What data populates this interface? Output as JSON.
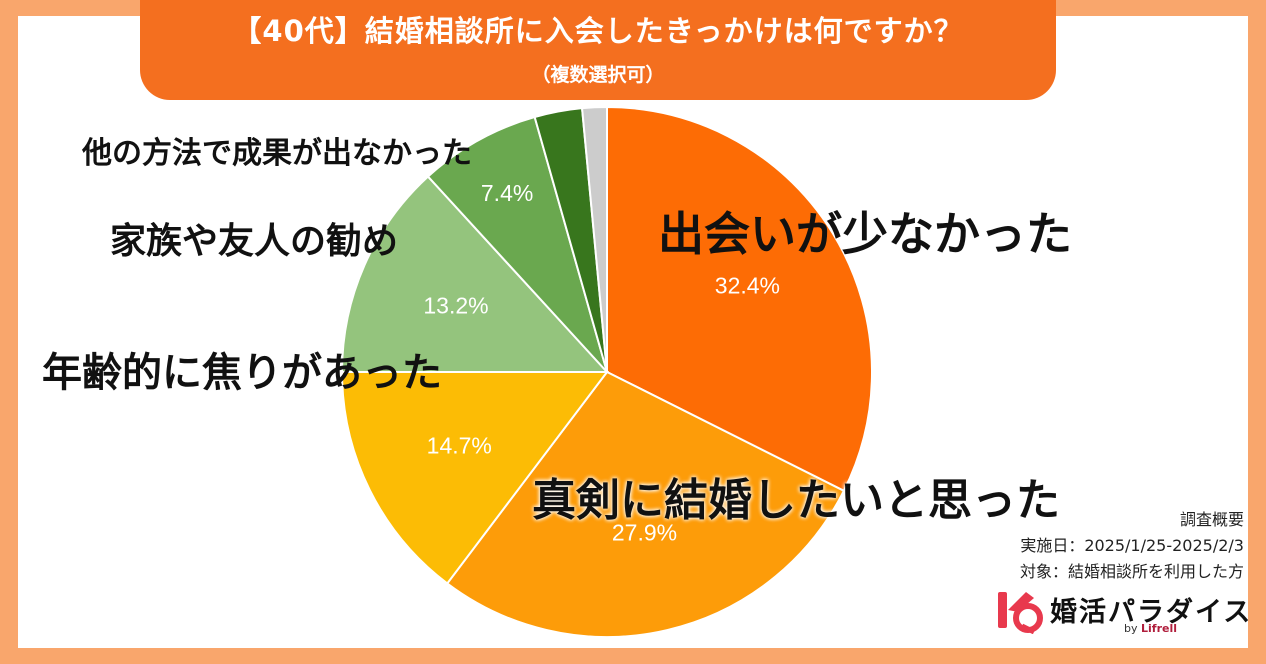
{
  "title": "【40代】結婚相談所に入会したきっかけは何ですか？",
  "subtitle": "（複数選択可）",
  "chart_data": {
    "type": "pie",
    "slices": [
      {
        "label": "出会いが少なかった",
        "value": 32.4,
        "value_label": "32.4%",
        "color": "#fd6c05"
      },
      {
        "label": "真剣に結婚したいと思った",
        "value": 27.9,
        "value_label": "27.9%",
        "color": "#fd9c09"
      },
      {
        "label": "年齢的に焦りがあった",
        "value": 14.7,
        "value_label": "14.7%",
        "color": "#fcbc05"
      },
      {
        "label": "家族や友人の勧め",
        "value": 13.2,
        "value_label": "13.2%",
        "color": "#94c47d"
      },
      {
        "label": "他の方法で成果が出なかった",
        "value": 7.4,
        "value_label": "7.4%",
        "color": "#6aa84f"
      },
      {
        "label": "",
        "value": 2.9,
        "value_label": "",
        "color": "#38761d"
      },
      {
        "label": "",
        "value": 1.5,
        "value_label": "",
        "color": "#cccccc"
      }
    ],
    "start": "top",
    "direction": "clockwise"
  },
  "survey": {
    "heading": "調査概要",
    "period": "実施日：2025/1/25-2025/2/3",
    "target": "対象：結婚相談所を利用した方"
  },
  "logo": {
    "name": "婚活パラダイス",
    "by_prefix": "by",
    "by_brand": "Lifrell"
  }
}
